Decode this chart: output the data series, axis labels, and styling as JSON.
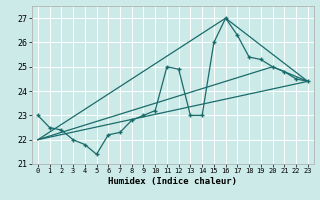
{
  "xlabel": "Humidex (Indice chaleur)",
  "xlim": [
    -0.5,
    23.5
  ],
  "ylim": [
    21,
    27.5
  ],
  "yticks": [
    21,
    22,
    23,
    24,
    25,
    26,
    27
  ],
  "xticks": [
    0,
    1,
    2,
    3,
    4,
    5,
    6,
    7,
    8,
    9,
    10,
    11,
    12,
    13,
    14,
    15,
    16,
    17,
    18,
    19,
    20,
    21,
    22,
    23
  ],
  "background_color": "#cceae7",
  "grid_color": "#ffffff",
  "line_color": "#1a6b6b",
  "line1_x": [
    0,
    1,
    2,
    3,
    4,
    5,
    6,
    7,
    8,
    9,
    10,
    11,
    12,
    13,
    14,
    15,
    16,
    17,
    18,
    19,
    20,
    21,
    22,
    23
  ],
  "line1_y": [
    23.0,
    22.5,
    22.4,
    22.0,
    21.8,
    21.4,
    22.2,
    22.3,
    22.8,
    23.0,
    23.2,
    25.0,
    24.9,
    23.0,
    23.0,
    26.0,
    27.0,
    26.3,
    25.4,
    25.3,
    25.0,
    24.8,
    24.5,
    24.4
  ],
  "line2_x": [
    0,
    23
  ],
  "line2_y": [
    22.0,
    24.4
  ],
  "line3_x": [
    0,
    16,
    23
  ],
  "line3_y": [
    22.0,
    27.0,
    24.4
  ],
  "line4_x": [
    0,
    20,
    23
  ],
  "line4_y": [
    22.0,
    25.0,
    24.4
  ]
}
